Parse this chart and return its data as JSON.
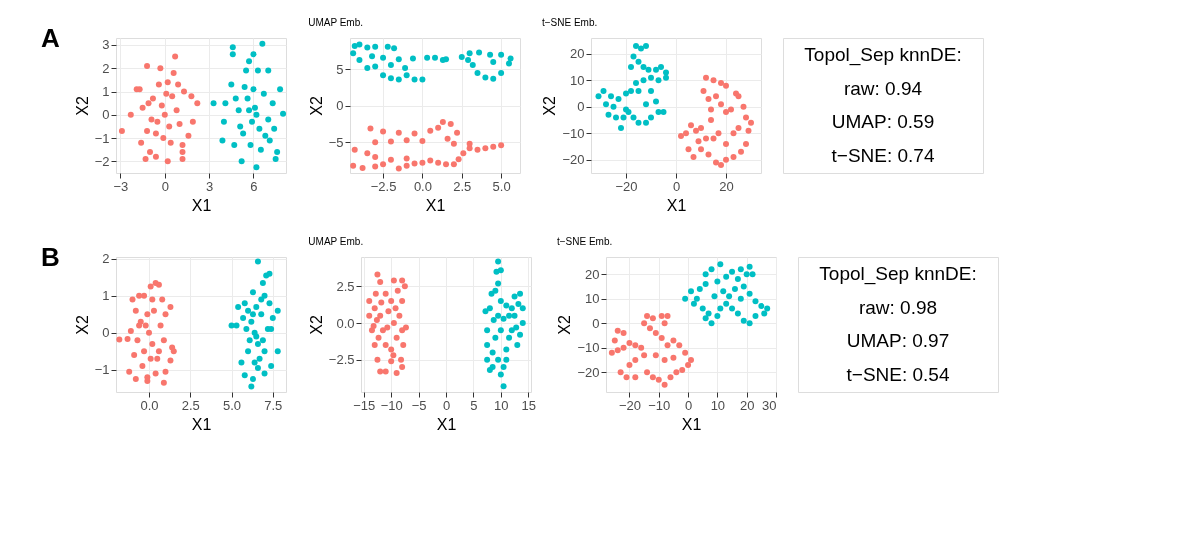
{
  "chart_data": [
    {
      "type": "scatter",
      "xlabel": "X1",
      "ylabel": "X2",
      "annotations": [
        "A"
      ],
      "marker": "circle",
      "grid": true,
      "xlim": [
        -3.3,
        8.2
      ],
      "xticks": [
        {
          "value": -3,
          "label": "−3"
        },
        0,
        3,
        6
      ],
      "ylim": [
        -2.5,
        3.3
      ],
      "yticks": [
        {
          "value": -2,
          "label": "−2"
        },
        {
          "value": -1,
          "label": "−1"
        },
        0,
        1,
        2,
        3
      ],
      "series": [
        {
          "color": "#f8766d",
          "x": [
            -2.9,
            -2.3,
            -1.9,
            -1.7,
            -1.2,
            -1.3,
            -1,
            -0.6,
            -0.3,
            0.2,
            0.7,
            0.6,
            1.2,
            1.2,
            1.2,
            2.2,
            1.9,
            1.6,
            1.8,
            -1.5,
            -1.2,
            -0.8,
            -0.5,
            -0.2,
            0,
            0.3,
            0.5,
            0.8,
            1.0,
            -0.4,
            0.2,
            -0.1,
            0.4,
            -0.9,
            1.3,
            -1.6,
            -0.6,
            0.1,
            0.9,
            -1.1
          ],
          "values": [
            -0.7,
            0,
            1.1,
            1.1,
            2.1,
            -1.9,
            -1.6,
            -1.8,
            2.0,
            -2.0,
            2.5,
            1.8,
            -1.9,
            -1.6,
            -1.3,
            0.5,
            -0.3,
            -0.9,
            0.8,
            0.3,
            -0.7,
            0.7,
            -0.3,
            0.4,
            0,
            -0.5,
            0.8,
            0.2,
            -0.4,
            1.3,
            1.4,
            -1.0,
            -1.2,
            -0.2,
            1.0,
            -1.2,
            -0.8,
            0.9,
            1.3,
            0.5
          ]
        },
        {
          "color": "#00bfc4",
          "x": [
            3.3,
            3.9,
            4.1,
            4.0,
            4.6,
            4.6,
            5.7,
            6.0,
            6.6,
            6.2,
            5.2,
            7.5,
            7.8,
            8.0,
            7.6,
            7.0,
            5.5,
            6.3,
            4.5,
            4.7,
            5.0,
            5.3,
            5.6,
            5.9,
            6.1,
            6.4,
            6.7,
            7.0,
            7.3,
            5.8,
            6.5,
            7.1,
            5.4,
            6.0,
            6.8,
            4.8,
            5.1,
            7.4,
            6.2,
            5.7
          ],
          "values": [
            0.5,
            -1.1,
            0.5,
            -0.3,
            2.9,
            2.6,
            2.3,
            2.6,
            3.05,
            -2.25,
            -2.0,
            -1.9,
            1.1,
            0.05,
            -1.6,
            1.9,
            1.9,
            1.9,
            1.3,
            -1.3,
            0.2,
            -0.8,
            0.7,
            -0.3,
            0.3,
            -0.6,
            0.9,
            -0.2,
            0.5,
            -1.3,
            -1.5,
            -1.1,
            1.2,
            1.1,
            -0.9,
            0.7,
            -0.5,
            -0.6,
            0,
            0.2
          ]
        }
      ]
    },
    {
      "type": "scatter",
      "title": "UMAP Emb.",
      "xlabel": "X1",
      "ylabel": "X2",
      "marker": "circle",
      "grid": true,
      "xlim": [
        -4.6,
        6.2
      ],
      "xticks": [
        {
          "value": -2.5,
          "label": "−2.5"
        },
        {
          "value": 0,
          "label": "0.0"
        },
        2.5,
        {
          "value": 5,
          "label": "5.0"
        }
      ],
      "ylim": [
        -9.2,
        9.3
      ],
      "yticks": [
        {
          "value": -5,
          "label": "−5"
        },
        0,
        5
      ],
      "series": [
        {
          "color": "#f8766d",
          "x": [
            -4.4,
            -3.8,
            -3.0,
            -2.5,
            -1.5,
            -1,
            -0.5,
            0,
            0.5,
            1,
            1.5,
            2.0,
            -4.3,
            -3.5,
            -3,
            -2.0,
            -1.0,
            -3.0,
            -2.0,
            -1,
            0,
            -3.3,
            -2.5,
            -1.5,
            -0.5,
            0.5,
            1,
            1.3,
            1.8,
            2.2,
            1.6,
            2.0,
            2.6,
            3.0,
            3.5,
            4.0,
            4.5,
            5.0,
            3.0,
            2.3
          ],
          "values": [
            -8.2,
            -8.5,
            -8.3,
            -8.0,
            -8.6,
            -8.2,
            -7.9,
            -7.8,
            -7.5,
            -7.8,
            -8.0,
            -8.0,
            -6.0,
            -6.5,
            -7.0,
            -7.4,
            -7.2,
            -5.0,
            -4.9,
            -4.7,
            -4.8,
            -3.1,
            -3.5,
            -3.7,
            -3.8,
            -3.4,
            -3.0,
            -2.2,
            -2.5,
            -3.7,
            -4.5,
            -5.2,
            -6.5,
            -5.8,
            -6.0,
            -5.8,
            -5.6,
            -5.4,
            -5.2,
            -7.3
          ]
        },
        {
          "color": "#00bfc4",
          "x": [
            -4.3,
            -4.4,
            -4.0,
            -3.5,
            -3,
            -2.2,
            -1.8,
            -4.0,
            -3.5,
            -3,
            -2.5,
            -2,
            -1.5,
            -1,
            -0.5,
            0,
            -3.2,
            -2.5,
            -1.5,
            -0.6,
            -1.1,
            -2.0,
            0.3,
            0.8,
            1.3,
            1.5,
            2.5,
            3,
            3.6,
            4.3,
            5.0,
            5.6,
            5.5,
            5.0,
            4.5,
            3.5,
            4.0,
            3.2,
            4.5,
            2.9
          ],
          "values": [
            8.2,
            7.2,
            8.4,
            8.0,
            8.1,
            8.1,
            7.9,
            6.3,
            5.2,
            5.4,
            4.2,
            3.8,
            3.6,
            4.2,
            3.6,
            3.6,
            6.8,
            6.6,
            6.4,
            6.5,
            5.2,
            5.6,
            6.6,
            6.6,
            6.3,
            6.4,
            6.7,
            7.2,
            7.3,
            7.0,
            7.0,
            6.5,
            5.8,
            4.5,
            3.7,
            4.5,
            3.9,
            5.6,
            6.0,
            6.3
          ]
        }
      ]
    },
    {
      "type": "scatter",
      "title": "t−SNE Emb.",
      "xlabel": "X1",
      "ylabel": "X2",
      "marker": "circle",
      "grid": true,
      "xlim": [
        -34,
        34
      ],
      "xticks": [
        {
          "value": -20,
          "label": "−20"
        },
        0,
        20
      ],
      "ylim": [
        -25,
        26
      ],
      "yticks": [
        {
          "value": -20,
          "label": "−20"
        },
        {
          "value": -10,
          "label": "−10"
        },
        0,
        10,
        20
      ],
      "series": [
        {
          "color": "#f8766d",
          "x": [
            12,
            15,
            18,
            20,
            11,
            13,
            16,
            18,
            14,
            20,
            22,
            24,
            25,
            27,
            28,
            30,
            29,
            28,
            26,
            23,
            20,
            18,
            16,
            13,
            10,
            7,
            5,
            2,
            4,
            6,
            8,
            10,
            12,
            15,
            17,
            20,
            23,
            25,
            14,
            9
          ],
          "values": [
            11,
            10,
            9,
            8,
            6,
            3,
            4,
            1,
            -1,
            -2,
            -1,
            5,
            4,
            0,
            -4,
            -6,
            -9,
            -14,
            -17,
            -19,
            -20,
            -22,
            -21,
            -18,
            -16,
            -19,
            -16,
            -11,
            -10,
            -7,
            -9,
            -8,
            -12,
            -12,
            -10,
            -14,
            -10,
            -8,
            -5,
            -13
          ]
        },
        {
          "color": "#00bfc4",
          "x": [
            -16,
            -14,
            -12,
            -17,
            -15,
            -18,
            -13,
            -11,
            -8,
            -6,
            -4,
            -4,
            -7,
            -10,
            -13,
            -16,
            -18,
            -15,
            -20,
            -23,
            -26,
            -29,
            -31,
            -28,
            -25,
            -27,
            -24,
            -22,
            -21,
            -19,
            -17,
            -15,
            -12,
            -10,
            -7,
            -5,
            -8,
            -10,
            -12,
            -20
          ],
          "values": [
            23,
            22,
            23,
            19,
            17,
            15,
            15,
            14,
            14,
            15,
            13,
            11,
            10,
            11,
            10,
            9,
            6,
            6,
            5,
            3,
            4,
            6,
            4,
            1,
            0,
            -3,
            -4,
            -8,
            -4,
            -2,
            -4,
            -6,
            -6,
            -4,
            -2,
            -2,
            2,
            6,
            1,
            -1
          ]
        }
      ]
    },
    {
      "type": "other",
      "annotations": [
        "Topol_Sep knnDE:",
        "raw: 0.94",
        "UMAP: 0.59",
        "t−SNE: 0.74"
      ]
    },
    {
      "type": "scatter",
      "xlabel": "X1",
      "ylabel": "X2",
      "annotations": [
        "B"
      ],
      "marker": "circle",
      "grid": true,
      "xlim": [
        -2,
        8.3
      ],
      "xticks": [
        {
          "value": 0,
          "label": "0.0"
        },
        2.5,
        {
          "value": 5,
          "label": "5.0"
        },
        7.5
      ],
      "ylim": [
        -1.6,
        2.05
      ],
      "yticks": [
        {
          "value": -1,
          "label": "−1"
        },
        0,
        1,
        2
      ],
      "series": [
        {
          "color": "#f8766d",
          "x": [
            -1.8,
            -1.3,
            -1.1,
            -1,
            -0.8,
            -0.6,
            -0.3,
            0.1,
            0.4,
            0.6,
            0.8,
            1.3,
            1.4,
            1.5,
            1.3,
            1,
            0.9,
            0.4,
            -0.1,
            -0.1,
            -0.8,
            -1.2,
            -0.9,
            -0.7,
            -0.5,
            -0.3,
            -0.1,
            0,
            0.2,
            0.3,
            0.5,
            0.7,
            0.9,
            1.0,
            -0.4,
            0.2,
            -0.6,
            0.6,
            0.1,
            -0.2
          ],
          "values": [
            -0.18,
            -0.17,
            0.05,
            0.9,
            0.6,
            1.0,
            1.0,
            1.25,
            1.35,
            1.3,
            0.9,
            0.7,
            -0.4,
            -0.5,
            -0.75,
            -1.05,
            -1.35,
            -1.1,
            -1.2,
            -1.3,
            -1.25,
            -1.05,
            -0.6,
            -0.2,
            0.3,
            -0.5,
            0.5,
            0,
            -0.3,
            0.6,
            -0.7,
            0.2,
            -0.2,
            0.5,
            -0.9,
            0.9,
            0.2,
            -0.5,
            -0.7,
            0.2
          ]
        },
        {
          "color": "#00bfc4",
          "x": [
            5,
            5.3,
            5.4,
            5.6,
            5.8,
            6.3,
            6.2,
            6.6,
            7,
            7.4,
            7.8,
            7.8,
            7.5,
            7.3,
            7.0,
            6.6,
            7.1,
            7.3,
            6.9,
            6.3,
            5.8,
            6.0,
            6.2,
            6.4,
            6.6,
            6.8,
            7.0,
            6.5,
            6.1,
            5.9,
            6.7,
            6.3,
            7.2,
            6.5,
            6.9,
            5.7,
            6.4,
            6.8,
            7.4,
            6.0
          ],
          "values": [
            0.2,
            0.2,
            0.7,
            -0.8,
            -1.15,
            -1.25,
            -1.45,
            -0.95,
            -1.1,
            -0.9,
            -0.5,
            0.6,
            0.4,
            0.8,
            1.0,
            1.93,
            1.55,
            1.6,
            1.35,
            1.1,
            0.8,
            -0.5,
            0.3,
            0,
            -0.3,
            0.5,
            -0.5,
            0.7,
            -0.2,
            0.1,
            -0.7,
            0.5,
            0.1,
            -0.1,
            -0.2,
            0.4,
            -0.8,
            0.9,
            0.1,
            0.6
          ]
        }
      ]
    },
    {
      "type": "scatter",
      "title": "UMAP Emb.",
      "xlabel": "X1",
      "ylabel": "X2",
      "marker": "circle",
      "grid": true,
      "xlim": [
        -15.5,
        15.5
      ],
      "xticks": [
        {
          "value": -15,
          "label": "−15"
        },
        {
          "value": -10,
          "label": "−10"
        },
        {
          "value": -5,
          "label": "−5"
        },
        0,
        5,
        10,
        15
      ],
      "ylim": [
        -4.7,
        4.5
      ],
      "yticks": [
        {
          "value": -2.5,
          "label": "−2.5"
        },
        {
          "value": 0,
          "label": "0.0"
        },
        2.5
      ],
      "series": [
        {
          "color": "#f8766d",
          "x": [
            -12.5,
            -12,
            -11,
            -9.5,
            -8,
            -7.5,
            -8,
            -8.5,
            -8,
            -7.3,
            -7.8,
            -8.2,
            -8,
            -9,
            -10,
            -11,
            -12,
            -12.5,
            -13,
            -13.5,
            -14,
            -14,
            -13,
            -12.8,
            -12,
            -11.5,
            -11,
            -10.5,
            -10,
            -9.5,
            -9,
            -10,
            -9.2,
            -12.3,
            -13.2,
            -11.8,
            -10.7,
            -8.8,
            -9.6,
            -12.6
          ],
          "values": [
            3.3,
            2.8,
            2.0,
            2.9,
            2.9,
            2.5,
            1.5,
            0.5,
            -0.5,
            -0.3,
            -1.5,
            -2.5,
            -3.0,
            -3.4,
            -2.6,
            -3.3,
            -3.3,
            -2.5,
            -1.5,
            -0.5,
            0.5,
            1.5,
            1.0,
            2.0,
            0.5,
            -0.5,
            -1.5,
            0.8,
            1.5,
            0,
            -1,
            -1.8,
            1.0,
            -1.0,
            -0.2,
            1.4,
            -0.3,
            2.2,
            -2.2,
            0.2
          ]
        },
        {
          "color": "#00bfc4",
          "x": [
            9.5,
            9.2,
            10,
            9.5,
            9,
            8.3,
            8,
            7.2,
            7.5,
            7.5,
            7.5,
            8,
            8.5,
            10,
            10.5,
            10.5,
            11,
            11.5,
            12,
            12.5,
            13,
            13.5,
            14,
            14,
            13.5,
            12.5,
            12,
            11.5,
            11,
            10.5,
            10,
            9.5,
            9,
            8.5,
            9.5,
            10,
            12.8,
            13.2,
            8.7,
            11
          ],
          "values": [
            4.2,
            3.5,
            3.6,
            2.7,
            2.2,
            2.0,
            1,
            0.8,
            -0.5,
            -1.5,
            -2.5,
            -3.2,
            -3.0,
            -3.5,
            -4.3,
            -3,
            -1.8,
            -1,
            -0.5,
            0.5,
            -1.5,
            -0.8,
            0,
            1.0,
            2.0,
            1.8,
            1.0,
            0.5,
            1.2,
            0.3,
            -0.5,
            0.5,
            -1,
            -2,
            -2.5,
            1.5,
            -0.3,
            1.3,
            0.2,
            -2.5
          ]
        }
      ]
    },
    {
      "type": "scatter",
      "title": "t−SNE Emb.",
      "xlabel": "X1",
      "ylabel": "X2",
      "marker": "circle",
      "grid": true,
      "xlim": [
        -28,
        30
      ],
      "xticks": [
        {
          "value": -20,
          "label": "−20"
        },
        {
          "value": -10,
          "label": "−10"
        },
        0,
        10,
        20,
        30
      ],
      "ylim": [
        -28,
        27
      ],
      "yticks": [
        {
          "value": -20,
          "label": "−20"
        },
        {
          "value": -10,
          "label": "−10"
        },
        0,
        10,
        20
      ],
      "series": [
        {
          "color": "#f8766d",
          "x": [
            -24,
            -22,
            -25,
            -24,
            -26,
            -22,
            -20,
            -18,
            -16,
            -15,
            -18,
            -20,
            -23,
            -21,
            -18,
            -14,
            -12,
            -10,
            -8,
            -6,
            -4,
            -2,
            0,
            1,
            -1,
            -3,
            -5,
            -7,
            -9,
            -11,
            -13,
            -15,
            -14,
            -12,
            -9,
            -7,
            -8,
            -11,
            -8,
            -5
          ],
          "values": [
            -3,
            -4,
            -7,
            -11,
            -12,
            -10,
            -8,
            -9,
            -10,
            -13,
            -15,
            -17,
            -20,
            -22,
            -22,
            -20,
            -22,
            -23,
            -25,
            -22,
            -20,
            -19,
            -17,
            -15,
            -12,
            -9,
            -7,
            -9,
            -6,
            -4,
            -2,
            0,
            3,
            2,
            3,
            3,
            0,
            -13,
            -15,
            -14
          ]
        },
        {
          "color": "#00bfc4",
          "x": [
            6,
            4,
            1,
            -1,
            2,
            5,
            7,
            6,
            8,
            10,
            11,
            13,
            15,
            17,
            19,
            21,
            23,
            25,
            27,
            26,
            23,
            21,
            19,
            20,
            18,
            15,
            13,
            11,
            8,
            6,
            10,
            12,
            14,
            16,
            18,
            22,
            21,
            9,
            3,
            17
          ],
          "values": [
            16,
            14,
            13,
            10,
            8,
            6,
            4,
            2,
            0,
            3,
            6,
            8,
            6,
            4,
            1,
            0,
            3,
            7,
            6,
            4,
            9,
            12,
            15,
            20,
            22,
            21,
            19,
            24,
            22,
            20,
            17,
            13,
            11,
            14,
            10,
            20,
            23,
            11,
            10,
            18
          ]
        }
      ]
    },
    {
      "type": "other",
      "annotations": [
        "Topol_Sep knnDE:",
        "raw: 0.98",
        "UMAP: 0.97",
        "t−SNE: 0.54"
      ]
    }
  ]
}
